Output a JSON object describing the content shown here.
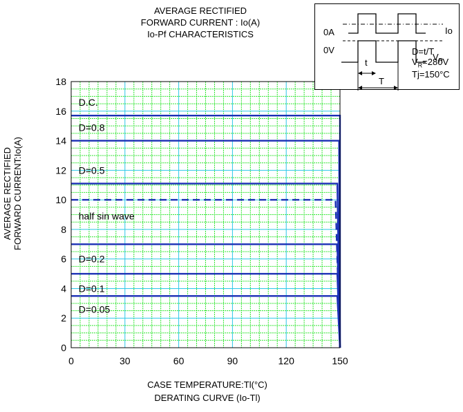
{
  "title_lines": [
    "AVERAGE RECTIFIED",
    "FORWARD CURRENT : Io(A)",
    "Io-Pf CHARACTERISTICS"
  ],
  "xlabel_lines": [
    "CASE TEMPERATURE:Tl(°C)",
    "DERATING  CURVE (Io-Tl)"
  ],
  "ylabel_lines": [
    "AVERAGE RECTIFIED",
    "FORWARD CURRENT:Io(A)"
  ],
  "inset": {
    "label_0A": "0A",
    "label_0V": "0V",
    "label_Io": "Io",
    "label_VR": "V",
    "label_VR_sub": "R",
    "label_t": "t",
    "label_T": "T",
    "label_D": "D=t/T",
    "label_VR_value_prefix": "V",
    "label_VR_value_sub": "R",
    "label_VR_value_suffix": "=280V",
    "label_Tj": "Tj=150°C"
  },
  "colors": {
    "grid": "#33e633",
    "grid_major": "#2bc8e8",
    "curve": "#1a2fb5",
    "axis": "#000000"
  },
  "chart_data": {
    "type": "line",
    "xlabel": "CASE TEMPERATURE:Tl(°C)",
    "ylabel": "AVERAGE RECTIFIED FORWARD CURRENT:Io(A)",
    "xlim": [
      0,
      150
    ],
    "ylim": [
      0,
      18
    ],
    "xticks": [
      0,
      30,
      60,
      90,
      120,
      150
    ],
    "yticks": [
      0,
      2,
      4,
      6,
      8,
      10,
      12,
      14,
      16,
      18
    ],
    "grid": true,
    "series": [
      {
        "name": "D.C.",
        "style": "solid",
        "x": [
          0,
          150,
          150
        ],
        "y": [
          15.7,
          15.7,
          0
        ]
      },
      {
        "name": "D=0.8",
        "style": "solid",
        "x": [
          0,
          149.5,
          150
        ],
        "y": [
          14.0,
          14.0,
          0
        ]
      },
      {
        "name": "D=0.5",
        "style": "solid",
        "x": [
          0,
          148.5,
          150
        ],
        "y": [
          11.1,
          11.1,
          0
        ]
      },
      {
        "name": "half sin wave",
        "style": "dashed",
        "x": [
          0,
          147.5,
          150
        ],
        "y": [
          10.0,
          10.0,
          0
        ]
      },
      {
        "name": "D=0.2",
        "style": "solid",
        "x": [
          0,
          148.5,
          150
        ],
        "y": [
          7.0,
          7.0,
          0
        ]
      },
      {
        "name": "D=0.1",
        "style": "solid",
        "x": [
          0,
          148.5,
          150
        ],
        "y": [
          5.0,
          5.0,
          0
        ]
      },
      {
        "name": "D=0.05",
        "style": "solid",
        "x": [
          0,
          148.5,
          150
        ],
        "y": [
          3.5,
          3.5,
          0
        ]
      }
    ],
    "curve_labels": [
      {
        "text": "D.C.",
        "x": 3,
        "y": 16.6
      },
      {
        "text": "D=0.8",
        "x": 3,
        "y": 14.9
      },
      {
        "text": "D=0.5",
        "x": 3,
        "y": 12.0
      },
      {
        "text": "half sin wave",
        "x": 3,
        "y": 8.9
      },
      {
        "text": "D=0.2",
        "x": 3,
        "y": 6.0
      },
      {
        "text": "D=0.1",
        "x": 3,
        "y": 4.0
      },
      {
        "text": "D=0.05",
        "x": 3,
        "y": 2.6
      }
    ]
  }
}
